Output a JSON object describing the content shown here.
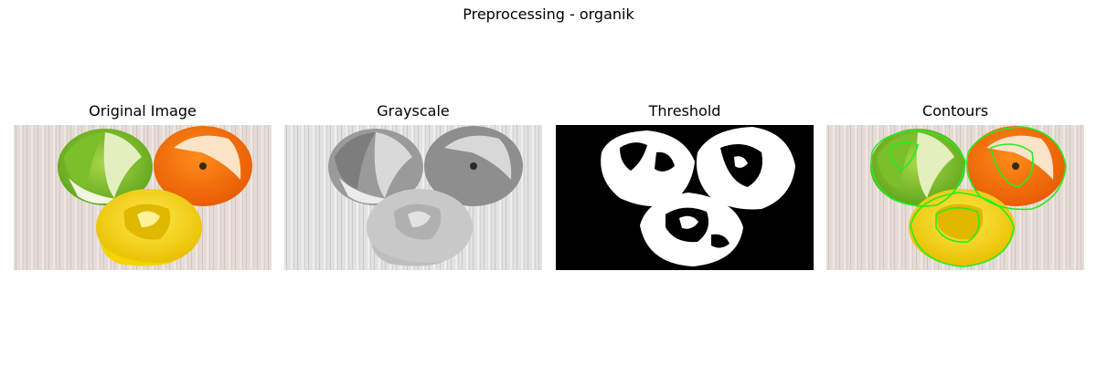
{
  "figure": {
    "title": "Preprocessing - organik"
  },
  "panels": [
    {
      "title": "Original Image",
      "image": "citrus-peels-color"
    },
    {
      "title": "Grayscale",
      "image": "citrus-peels-grayscale"
    },
    {
      "title": "Threshold",
      "image": "citrus-peels-binary-mask"
    },
    {
      "title": "Contours",
      "image": "citrus-peels-with-green-contours"
    }
  ]
}
